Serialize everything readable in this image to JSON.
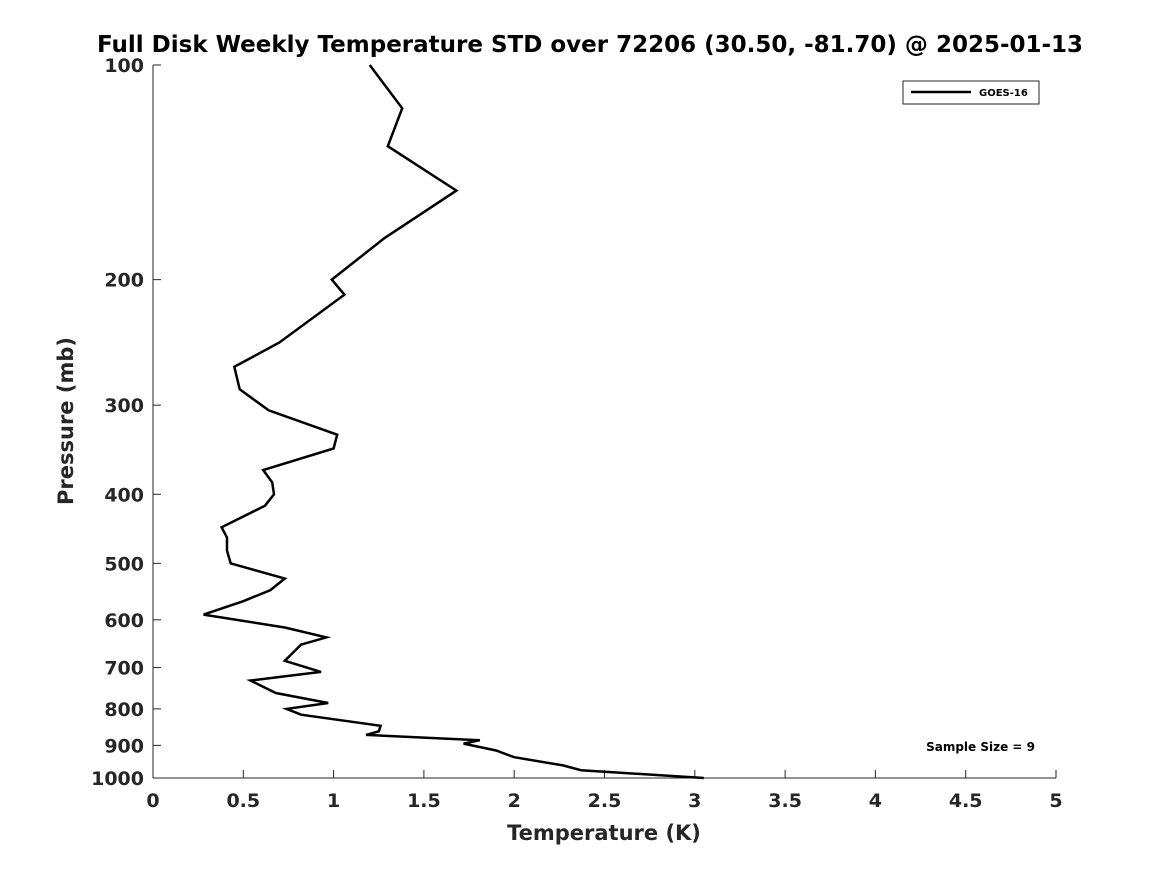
{
  "chart_data": {
    "type": "line",
    "title": "Full Disk Weekly Temperature STD over 72206 (30.50, -81.70) @ 2025-01-13",
    "xlabel": "Temperature (K)",
    "ylabel": "Pressure (mb)",
    "xlim": [
      0,
      5
    ],
    "ylim": [
      1000,
      100
    ],
    "y_scale": "log",
    "y_reversed": true,
    "x_ticks": [
      0,
      0.5,
      1,
      1.5,
      2,
      2.5,
      3,
      3.5,
      4,
      4.5,
      5
    ],
    "x_tick_labels": [
      "0",
      "0.5",
      "1",
      "1.5",
      "2",
      "2.5",
      "3",
      "3.5",
      "4",
      "4.5",
      "5"
    ],
    "y_ticks": [
      100,
      200,
      300,
      400,
      500,
      600,
      700,
      800,
      900,
      1000
    ],
    "y_tick_labels": [
      "100",
      "200",
      "300",
      "400",
      "500",
      "600",
      "700",
      "800",
      "900",
      "1000"
    ],
    "grid": false,
    "legend": {
      "position": "top-right",
      "entries": [
        "GOES-16"
      ]
    },
    "annotation": "Sample Size = 9",
    "line_color": "#000000",
    "series": [
      {
        "name": "GOES-16",
        "x": [
          1.2,
          1.38,
          1.3,
          1.68,
          1.28,
          0.99,
          1.06,
          0.7,
          0.45,
          0.48,
          0.64,
          1.02,
          1.0,
          0.61,
          0.66,
          0.67,
          0.62,
          0.38,
          0.41,
          0.41,
          0.43,
          0.73,
          0.65,
          0.5,
          0.28,
          0.73,
          0.96,
          0.82,
          0.73,
          0.93,
          0.54,
          0.68,
          0.97,
          0.74,
          0.82,
          1.26,
          1.25,
          1.18,
          1.81,
          1.72,
          1.9,
          2.0,
          2.27,
          2.37,
          3.05
        ],
        "y": [
          100,
          115,
          130,
          150,
          175,
          200,
          210,
          245,
          265,
          285,
          305,
          330,
          345,
          370,
          385,
          400,
          415,
          445,
          460,
          480,
          500,
          525,
          545,
          565,
          590,
          615,
          635,
          650,
          685,
          710,
          730,
          760,
          785,
          800,
          815,
          845,
          860,
          870,
          885,
          895,
          915,
          935,
          960,
          975,
          1000
        ]
      }
    ]
  }
}
